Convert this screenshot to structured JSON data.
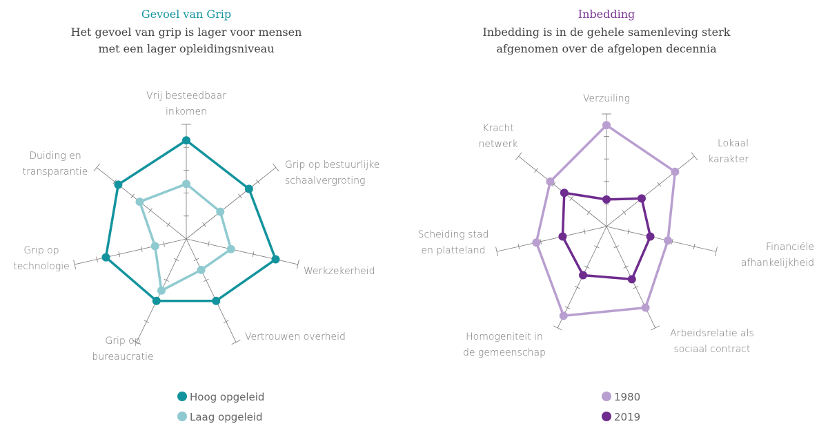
{
  "chart_data": [
    {
      "type": "radar",
      "title": "Gevoel van Grip",
      "title_color": "#13939d",
      "subtitle": [
        "Het gevoel van grip is lager voor mensen",
        "met een lager opleidingsniveau"
      ],
      "categories": [
        [
          "Vrij besteedbaar",
          "inkomen"
        ],
        [
          "Grip op bestuurlijke",
          "schaalvergroting"
        ],
        [
          "Werkzekerheid"
        ],
        [
          "Vertrouwen overheid"
        ],
        [
          "Grip op",
          "bureaucratie"
        ],
        [
          "Grip op",
          "technologie"
        ],
        [
          "Duiding en",
          "transparantie"
        ]
      ],
      "series": [
        {
          "name": "Hoog opgeleid",
          "color": "#13939d",
          "values": [
            4.3,
            3.5,
            4.0,
            3.0,
            3.0,
            3.6,
            3.8
          ]
        },
        {
          "name": "Laag opgeleid",
          "color": "#8fcad0",
          "values": [
            2.4,
            1.9,
            2.0,
            1.5,
            2.5,
            1.4,
            2.6
          ]
        }
      ],
      "rlim": [
        0,
        5
      ],
      "rticks": [
        1,
        2,
        3,
        4,
        5
      ]
    },
    {
      "type": "radar",
      "title": "Inbedding",
      "title_color": "#7a3593",
      "subtitle": [
        "Inbedding is in de gehele samenleving sterk",
        "afgenomen over de afgelopen decennia"
      ],
      "categories": [
        [
          "Verzuiling"
        ],
        [
          "Lokaal",
          "karakter"
        ],
        [
          "Financiële",
          "afhankelijkheid"
        ],
        [
          "Arbeidsrelatie als",
          "sociaal contract"
        ],
        [
          "Homogeniteit in",
          "de gemeenschap"
        ],
        [
          "Scheiding stad",
          "en platteland"
        ],
        [
          "Kracht",
          "netwerk"
        ]
      ],
      "series": [
        {
          "name": "1980",
          "color": "#b99fd0",
          "values": [
            4.5,
            3.9,
            2.8,
            4.0,
            4.4,
            3.2,
            3.2
          ]
        },
        {
          "name": "2019",
          "color": "#6e2c8e",
          "values": [
            1.2,
            2.0,
            2.0,
            2.6,
            2.4,
            2.0,
            2.4
          ]
        }
      ],
      "rlim": [
        0,
        5
      ],
      "rticks": [
        1,
        2,
        3,
        4,
        5
      ]
    }
  ]
}
